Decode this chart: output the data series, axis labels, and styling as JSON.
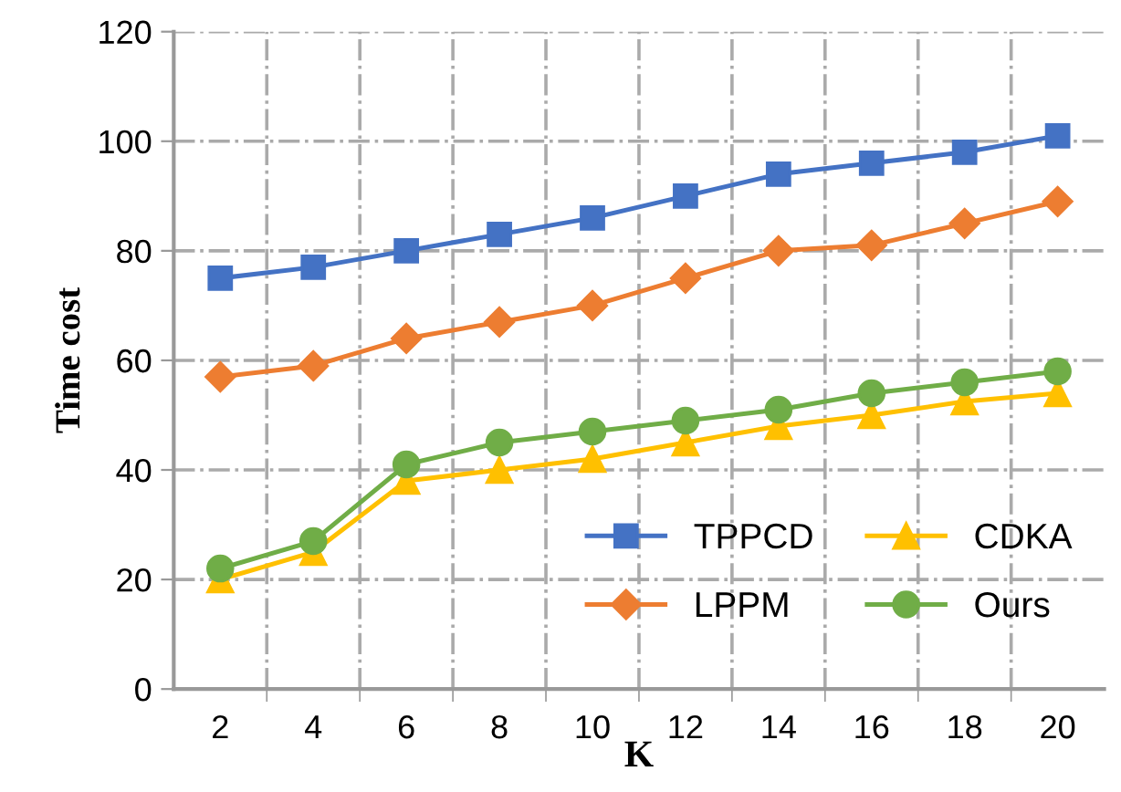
{
  "chart_data": {
    "type": "line",
    "xlabel": "K",
    "ylabel": "Time cost",
    "categories": [
      "2",
      "4",
      "6",
      "8",
      "10",
      "12",
      "14",
      "16",
      "18",
      "20"
    ],
    "series": [
      {
        "name": "TPPCD",
        "color": "#4472c4",
        "marker": "square",
        "values": [
          75,
          77,
          80,
          83,
          86,
          90,
          94,
          96,
          98,
          101
        ]
      },
      {
        "name": "LPPM",
        "color": "#ed7d31",
        "marker": "diamond",
        "values": [
          57,
          59,
          64,
          67,
          70,
          75,
          80,
          81,
          85,
          89
        ]
      },
      {
        "name": "CDKA",
        "color": "#ffc000",
        "marker": "triangle",
        "values": [
          20,
          25,
          38,
          40,
          42,
          45,
          48,
          50,
          52.5,
          54
        ]
      },
      {
        "name": "Ours",
        "color": "#70ad47",
        "marker": "circle",
        "values": [
          22,
          27,
          41,
          45,
          47,
          49,
          51,
          54,
          56,
          58
        ]
      }
    ],
    "ylim": [
      0,
      120
    ],
    "yticks": [
      0,
      20,
      40,
      60,
      80,
      100,
      120
    ],
    "grid": true,
    "legend": "bottom right",
    "line_style": "solid"
  }
}
